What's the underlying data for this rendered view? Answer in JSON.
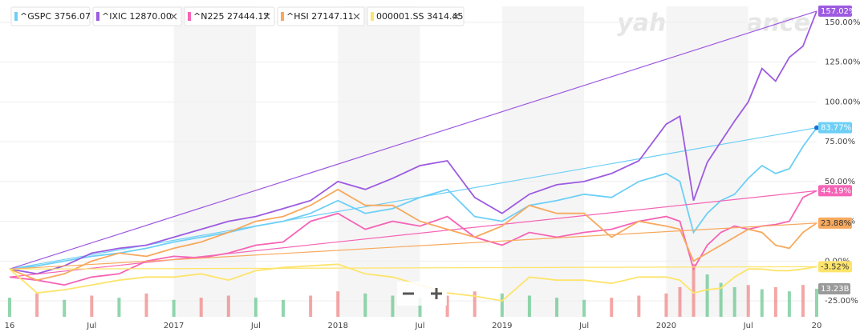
{
  "chart_data": {
    "type": "line",
    "logo": "yahoo!finance",
    "x": [
      "2016-01",
      "2016-03",
      "2016-05",
      "2016-07",
      "2016-09",
      "2016-11",
      "2017-01",
      "2017-03",
      "2017-05",
      "2017-07",
      "2017-09",
      "2017-11",
      "2018-01",
      "2018-03",
      "2018-05",
      "2018-07",
      "2018-09",
      "2018-11",
      "2019-01",
      "2019-03",
      "2019-05",
      "2019-07",
      "2019-09",
      "2019-11",
      "2020-01",
      "2020-02",
      "2020-03",
      "2020-04",
      "2020-05",
      "2020-06",
      "2020-07",
      "2020-08",
      "2020-09",
      "2020-10",
      "2020-11",
      "2020-12"
    ],
    "xlim": [
      "2016-01",
      "2020-12"
    ],
    "xticks": [
      {
        "value": "2016-01",
        "label": "16"
      },
      {
        "value": "2016-07",
        "label": "Jul"
      },
      {
        "value": "2017-01",
        "label": "2017"
      },
      {
        "value": "2017-07",
        "label": "Jul"
      },
      {
        "value": "2018-01",
        "label": "2018"
      },
      {
        "value": "2018-07",
        "label": "Jul"
      },
      {
        "value": "2019-01",
        "label": "2019"
      },
      {
        "value": "2019-07",
        "label": "Jul"
      },
      {
        "value": "2020-01",
        "label": "2020"
      },
      {
        "value": "2020-07",
        "label": "Jul"
      },
      {
        "value": "2020-12",
        "label": "20"
      }
    ],
    "ylim": [
      -35,
      160
    ],
    "yticks": [
      {
        "value": 150,
        "label": "150.00%"
      },
      {
        "value": 125,
        "label": "125.00%"
      },
      {
        "value": 100,
        "label": "100.00%"
      },
      {
        "value": 75,
        "label": "75.00%"
      },
      {
        "value": 50,
        "label": "50.00%"
      },
      {
        "value": 25,
        "label": "25.00%"
      },
      {
        "value": 0,
        "label": "0.00%"
      },
      {
        "value": -25,
        "label": "-25.00%"
      }
    ],
    "grid": true,
    "series": [
      {
        "name": "^GSPC 3756.07",
        "color": "#6dcff6",
        "end_label": "83.77%",
        "values": [
          -5,
          -3,
          0,
          3,
          5,
          8,
          12,
          15,
          18,
          22,
          25,
          30,
          38,
          30,
          33,
          40,
          45,
          28,
          25,
          35,
          38,
          42,
          40,
          50,
          55,
          50,
          18,
          30,
          38,
          42,
          52,
          60,
          55,
          58,
          72,
          83.77
        ]
      },
      {
        "name": "^IXIC 12870.00",
        "color": "#9d5be0",
        "end_label": "157.02%",
        "values": [
          -5,
          -8,
          -3,
          5,
          8,
          10,
          15,
          20,
          25,
          28,
          33,
          38,
          50,
          45,
          52,
          60,
          63,
          40,
          30,
          42,
          48,
          50,
          55,
          63,
          86,
          91,
          38,
          62,
          75,
          88,
          100,
          121,
          113,
          128,
          135,
          157.02
        ]
      },
      {
        "name": "^N225 27444.17",
        "color": "#f564b6",
        "end_label": "44.19%",
        "values": [
          -10,
          -12,
          -15,
          -10,
          -8,
          0,
          3,
          2,
          5,
          10,
          12,
          25,
          30,
          20,
          25,
          22,
          28,
          15,
          10,
          18,
          15,
          18,
          20,
          25,
          28,
          25,
          -5,
          10,
          18,
          22,
          20,
          22,
          23,
          25,
          40,
          44.19
        ]
      },
      {
        "name": "^HSI 27147.11",
        "color": "#f7a95e",
        "end_label": "23.88%",
        "values": [
          -5,
          -12,
          -8,
          0,
          5,
          3,
          8,
          12,
          18,
          25,
          28,
          35,
          45,
          35,
          35,
          25,
          20,
          15,
          22,
          35,
          30,
          30,
          15,
          25,
          22,
          20,
          0,
          5,
          10,
          15,
          20,
          18,
          10,
          8,
          18,
          23.88
        ]
      },
      {
        "name": "000001.SS 3414.45",
        "color": "#fde46b",
        "end_label": "-3.52%",
        "values": [
          -5,
          -20,
          -18,
          -15,
          -12,
          -10,
          -10,
          -8,
          -12,
          -6,
          -4,
          -3,
          -2,
          -8,
          -10,
          -15,
          -20,
          -22,
          -25,
          -10,
          -12,
          -12,
          -14,
          -10,
          -10,
          -12,
          -20,
          -18,
          -17,
          -10,
          -5,
          -5,
          -6,
          -6,
          -5,
          -3.52
        ]
      }
    ],
    "volume": {
      "color": "#62c48a",
      "end_label": "13.23B",
      "values": [
        9,
        11,
        8,
        10,
        9,
        11,
        8,
        9,
        10,
        9,
        8,
        10,
        12,
        11,
        10,
        9,
        10,
        12,
        11,
        10,
        9,
        8,
        9,
        10,
        11,
        14,
        25,
        20,
        16,
        14,
        15,
        13,
        14,
        12,
        15,
        13.23
      ]
    }
  }
}
